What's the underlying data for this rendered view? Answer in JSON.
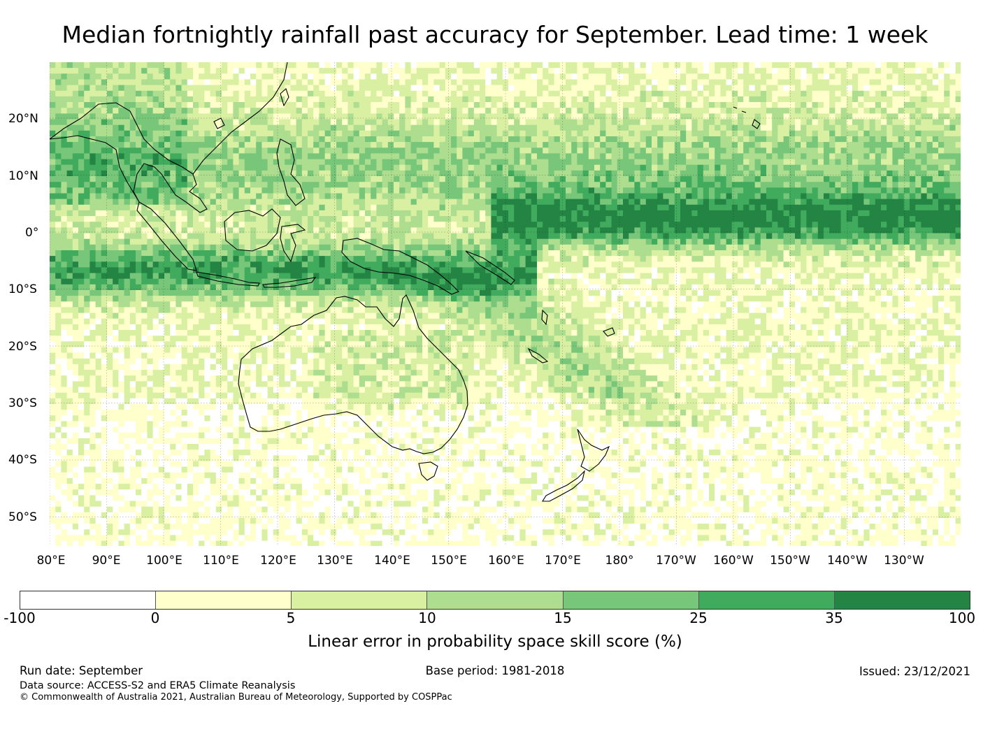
{
  "title": "Median fortnightly rainfall past accuracy for September. Lead time: 1 week",
  "map": {
    "lat_labels": [
      "20°N",
      "10°N",
      "0°",
      "10°S",
      "20°S",
      "30°S",
      "40°S",
      "50°S"
    ],
    "lon_labels": [
      "80°E",
      "90°E",
      "100°E",
      "110°E",
      "120°E",
      "130°E",
      "140°E",
      "150°E",
      "160°E",
      "170°E",
      "180°",
      "170°W",
      "160°W",
      "150°W",
      "140°W",
      "130°W"
    ]
  },
  "colorbar": {
    "ticks": [
      "-100",
      "0",
      "5",
      "10",
      "15",
      "25",
      "35",
      "100"
    ],
    "colors": [
      "#ffffff",
      "#ffffcc",
      "#d9f0a3",
      "#addd8e",
      "#78c679",
      "#41ab5d",
      "#238443"
    ],
    "label": "Linear error in probability space skill score (%)"
  },
  "footer": {
    "run_date": "Run date: September",
    "base_period": "Base period: 1981-2018",
    "issued": "Issued: 23/12/2021",
    "data_source": "Data source: ACCESS-S2 and ERA5 Climate Reanalysis",
    "copyright": "© Commonwealth of Australia 2021, Australian Bureau of Meteorology, Supported by COSPPac"
  }
}
